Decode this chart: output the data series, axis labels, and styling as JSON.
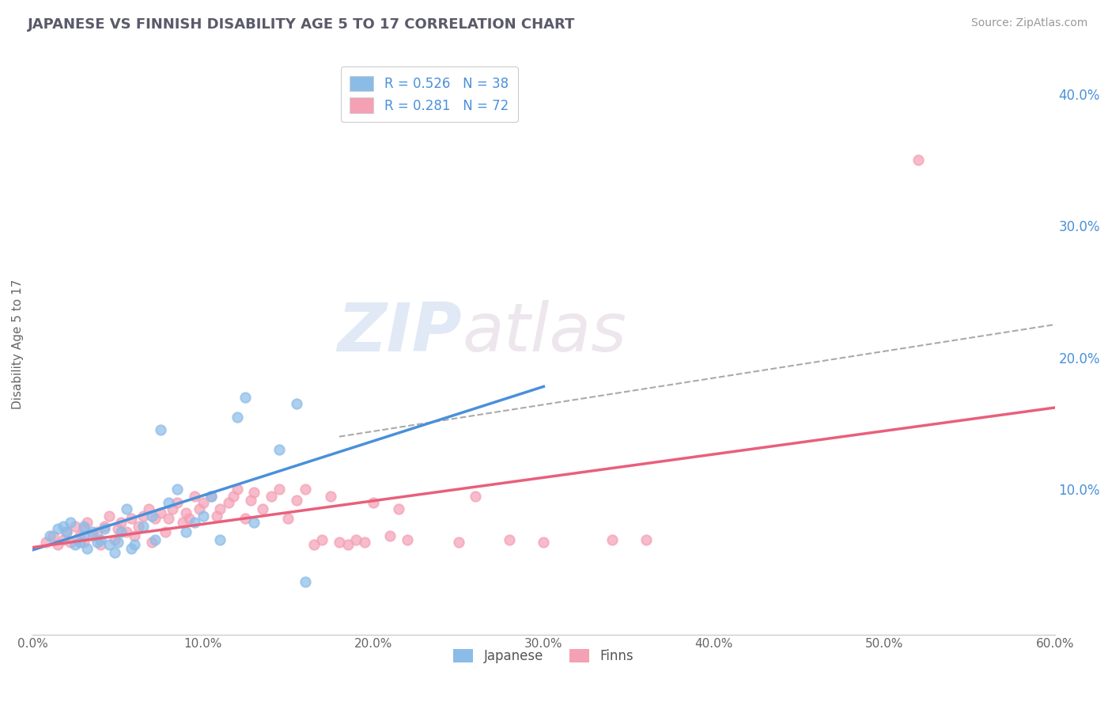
{
  "title": "JAPANESE VS FINNISH DISABILITY AGE 5 TO 17 CORRELATION CHART",
  "source": "Source: ZipAtlas.com",
  "ylabel": "Disability Age 5 to 17",
  "xlim": [
    0.0,
    0.6
  ],
  "ylim": [
    -0.01,
    0.43
  ],
  "xticks": [
    0.0,
    0.1,
    0.2,
    0.3,
    0.4,
    0.5,
    0.6
  ],
  "xtick_labels": [
    "0.0%",
    "10.0%",
    "20.0%",
    "30.0%",
    "40.0%",
    "50.0%",
    "60.0%"
  ],
  "yticks_right": [
    0.1,
    0.2,
    0.3,
    0.4
  ],
  "ytick_right_labels": [
    "10.0%",
    "20.0%",
    "30.0%",
    "40.0%"
  ],
  "japanese_color": "#8BBCE8",
  "finns_color": "#F4A0B5",
  "legend_label_japanese": "Japanese",
  "legend_label_finns": "Finns",
  "watermark_zip": "ZIP",
  "watermark_atlas": "atlas",
  "japanese_points": [
    [
      0.01,
      0.065
    ],
    [
      0.015,
      0.07
    ],
    [
      0.018,
      0.072
    ],
    [
      0.02,
      0.068
    ],
    [
      0.022,
      0.075
    ],
    [
      0.025,
      0.058
    ],
    [
      0.028,
      0.06
    ],
    [
      0.03,
      0.065
    ],
    [
      0.03,
      0.072
    ],
    [
      0.032,
      0.055
    ],
    [
      0.035,
      0.068
    ],
    [
      0.038,
      0.06
    ],
    [
      0.04,
      0.062
    ],
    [
      0.042,
      0.07
    ],
    [
      0.045,
      0.058
    ],
    [
      0.048,
      0.052
    ],
    [
      0.05,
      0.06
    ],
    [
      0.052,
      0.068
    ],
    [
      0.055,
      0.085
    ],
    [
      0.058,
      0.055
    ],
    [
      0.06,
      0.058
    ],
    [
      0.065,
      0.072
    ],
    [
      0.07,
      0.08
    ],
    [
      0.072,
      0.062
    ],
    [
      0.075,
      0.145
    ],
    [
      0.08,
      0.09
    ],
    [
      0.085,
      0.1
    ],
    [
      0.09,
      0.068
    ],
    [
      0.095,
      0.075
    ],
    [
      0.1,
      0.08
    ],
    [
      0.105,
      0.095
    ],
    [
      0.11,
      0.062
    ],
    [
      0.12,
      0.155
    ],
    [
      0.125,
      0.17
    ],
    [
      0.13,
      0.075
    ],
    [
      0.145,
      0.13
    ],
    [
      0.155,
      0.165
    ],
    [
      0.16,
      0.03
    ]
  ],
  "finns_points": [
    [
      0.008,
      0.06
    ],
    [
      0.012,
      0.065
    ],
    [
      0.015,
      0.058
    ],
    [
      0.018,
      0.062
    ],
    [
      0.02,
      0.068
    ],
    [
      0.022,
      0.06
    ],
    [
      0.025,
      0.072
    ],
    [
      0.028,
      0.065
    ],
    [
      0.03,
      0.06
    ],
    [
      0.03,
      0.07
    ],
    [
      0.032,
      0.075
    ],
    [
      0.035,
      0.065
    ],
    [
      0.038,
      0.068
    ],
    [
      0.04,
      0.058
    ],
    [
      0.042,
      0.072
    ],
    [
      0.045,
      0.08
    ],
    [
      0.048,
      0.062
    ],
    [
      0.05,
      0.07
    ],
    [
      0.052,
      0.075
    ],
    [
      0.055,
      0.068
    ],
    [
      0.058,
      0.078
    ],
    [
      0.06,
      0.065
    ],
    [
      0.062,
      0.072
    ],
    [
      0.065,
      0.08
    ],
    [
      0.068,
      0.085
    ],
    [
      0.07,
      0.06
    ],
    [
      0.072,
      0.078
    ],
    [
      0.075,
      0.082
    ],
    [
      0.078,
      0.068
    ],
    [
      0.08,
      0.078
    ],
    [
      0.082,
      0.085
    ],
    [
      0.085,
      0.09
    ],
    [
      0.088,
      0.075
    ],
    [
      0.09,
      0.082
    ],
    [
      0.092,
      0.078
    ],
    [
      0.095,
      0.095
    ],
    [
      0.098,
      0.085
    ],
    [
      0.1,
      0.09
    ],
    [
      0.105,
      0.095
    ],
    [
      0.108,
      0.08
    ],
    [
      0.11,
      0.085
    ],
    [
      0.115,
      0.09
    ],
    [
      0.118,
      0.095
    ],
    [
      0.12,
      0.1
    ],
    [
      0.125,
      0.078
    ],
    [
      0.128,
      0.092
    ],
    [
      0.13,
      0.098
    ],
    [
      0.135,
      0.085
    ],
    [
      0.14,
      0.095
    ],
    [
      0.145,
      0.1
    ],
    [
      0.15,
      0.078
    ],
    [
      0.155,
      0.092
    ],
    [
      0.16,
      0.1
    ],
    [
      0.165,
      0.058
    ],
    [
      0.17,
      0.062
    ],
    [
      0.175,
      0.095
    ],
    [
      0.18,
      0.06
    ],
    [
      0.185,
      0.058
    ],
    [
      0.19,
      0.062
    ],
    [
      0.195,
      0.06
    ],
    [
      0.2,
      0.09
    ],
    [
      0.21,
      0.065
    ],
    [
      0.215,
      0.085
    ],
    [
      0.22,
      0.062
    ],
    [
      0.25,
      0.06
    ],
    [
      0.26,
      0.095
    ],
    [
      0.28,
      0.062
    ],
    [
      0.3,
      0.06
    ],
    [
      0.34,
      0.062
    ],
    [
      0.36,
      0.062
    ],
    [
      0.52,
      0.35
    ]
  ],
  "jp_line_x": [
    0.0,
    0.3
  ],
  "jp_line_y": [
    0.054,
    0.178
  ],
  "fn_line_x": [
    0.0,
    0.6
  ],
  "fn_line_y": [
    0.056,
    0.162
  ],
  "dash_line_x": [
    0.18,
    0.6
  ],
  "dash_line_y": [
    0.14,
    0.225
  ],
  "background_color": "#ffffff",
  "grid_color": "#d8dff0",
  "title_color": "#5a5a6a",
  "source_color": "#999999",
  "tick_color": "#4A90D9",
  "label_color": "#666666"
}
